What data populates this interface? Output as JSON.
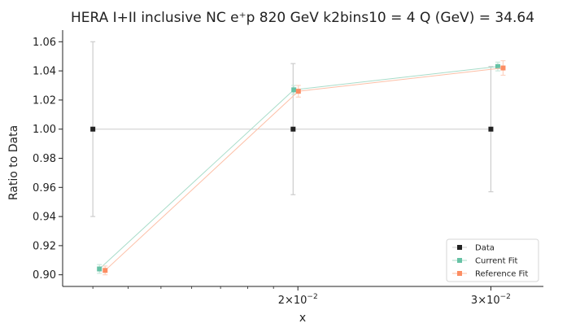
{
  "chart_data": {
    "type": "line",
    "title": "HERA I+II inclusive NC e⁺p 820 GeV k2bins10 = 4 Q (GeV) = 34.64",
    "xlabel": "x",
    "ylabel": "Ratio to Data",
    "xscale": "log",
    "xlim": [
      0.0122,
      0.0335
    ],
    "ylim": [
      0.892,
      1.068
    ],
    "yticks": [
      0.9,
      0.92,
      0.94,
      0.96,
      0.98,
      1.0,
      1.02,
      1.04,
      1.06
    ],
    "ytick_labels": [
      "0.90",
      "0.92",
      "0.94",
      "0.96",
      "0.98",
      "1.00",
      "1.02",
      "1.04",
      "1.06"
    ],
    "xticks": [
      0.02,
      0.03
    ],
    "xtick_labels": [
      {
        "mantissa": "2",
        "times": "×",
        "base": "10",
        "exp": "−2"
      },
      {
        "mantissa": "3",
        "times": "×",
        "base": "10",
        "exp": "−2"
      }
    ],
    "legend_position": "lower-right",
    "grid": false,
    "series": [
      {
        "name": "Data",
        "color": "#222222",
        "x": [
          0.013,
          0.0198,
          0.03
        ],
        "y": [
          1.0,
          1.0,
          1.0
        ],
        "yerr": [
          0.06,
          0.045,
          0.043
        ],
        "line_color": "#cccccc",
        "error_color": "#cccccc"
      },
      {
        "name": "Current Fit",
        "color": "#66c2a5",
        "x": [
          0.01318,
          0.01983,
          0.03044
        ],
        "y": [
          0.904,
          1.027,
          1.043
        ],
        "yerr": [
          0.003,
          0.003,
          0.003
        ],
        "line_color": "#a8dcc9",
        "error_color": "#c8e8dc"
      },
      {
        "name": "Reference Fit",
        "color": "#fc8d62",
        "x": [
          0.01334,
          0.02002,
          0.03078
        ],
        "y": [
          0.903,
          1.026,
          1.042
        ],
        "yerr": [
          0.003,
          0.004,
          0.005
        ],
        "line_color": "#fdbfa6",
        "error_color": "#fdd3c2"
      }
    ]
  }
}
